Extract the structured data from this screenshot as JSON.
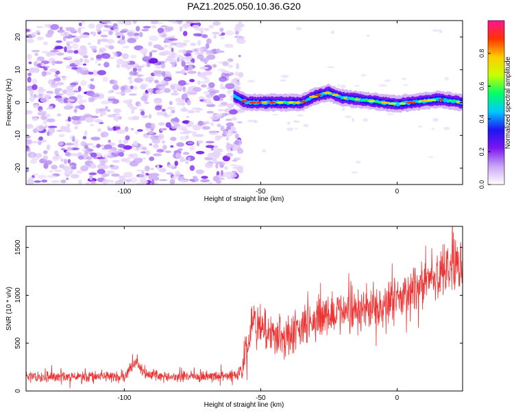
{
  "title": "PAZ1.2025.050.10.36.G20",
  "chart_data": [
    {
      "type": "heatmap",
      "xlabel": "Height of straight line (km)",
      "ylabel": "Frequency (Hz)",
      "xlim": [
        -136,
        24
      ],
      "ylim": [
        -25,
        25
      ],
      "x_ticks": [
        -100,
        -50,
        0
      ],
      "y_ticks": [
        -20,
        -10,
        0,
        10,
        20
      ],
      "colorbar": {
        "label": "Normalized spectral amplitude",
        "range": [
          0,
          1
        ],
        "ticks": [
          0.0,
          0.2,
          0.4,
          0.6,
          0.8
        ],
        "colormap": [
          "#ffffff",
          "#c9a6f5",
          "#7b16f0",
          "#1d14f0",
          "#00c8ff",
          "#00ff66",
          "#c8ff00",
          "#ffcc00",
          "#ff3300",
          "#ff1493"
        ]
      },
      "signal_track": {
        "x": [
          -60,
          -55,
          -50,
          -45,
          -40,
          -35,
          -30,
          -25,
          -20,
          -15,
          -10,
          -5,
          0,
          5,
          10,
          15,
          20,
          24
        ],
        "frequency": [
          2,
          0,
          0,
          0,
          0,
          0,
          2,
          3,
          1.5,
          1,
          0.5,
          0,
          -0.5,
          0,
          0.5,
          1,
          0.5,
          0
        ]
      },
      "noise_region": [
        -136,
        -57
      ]
    },
    {
      "type": "line",
      "xlabel": "Height of straight line (km)",
      "ylabel": "SNR (10 * v/v)",
      "xlim": [
        -136,
        24
      ],
      "ylim": [
        0,
        1720
      ],
      "x_ticks": [
        -100,
        -50,
        0
      ],
      "y_ticks": [
        0,
        500,
        1000,
        1500
      ],
      "color": "#ee3333",
      "trend": {
        "x": [
          -136,
          -100,
          -96,
          -92,
          -80,
          -70,
          -60,
          -57,
          -55,
          -53,
          -50,
          -40,
          -30,
          -20,
          -10,
          0,
          10,
          20,
          24
        ],
        "y": [
          150,
          150,
          300,
          170,
          150,
          150,
          160,
          200,
          500,
          750,
          640,
          560,
          750,
          840,
          860,
          950,
          1120,
          1300,
          1350
        ]
      }
    }
  ]
}
